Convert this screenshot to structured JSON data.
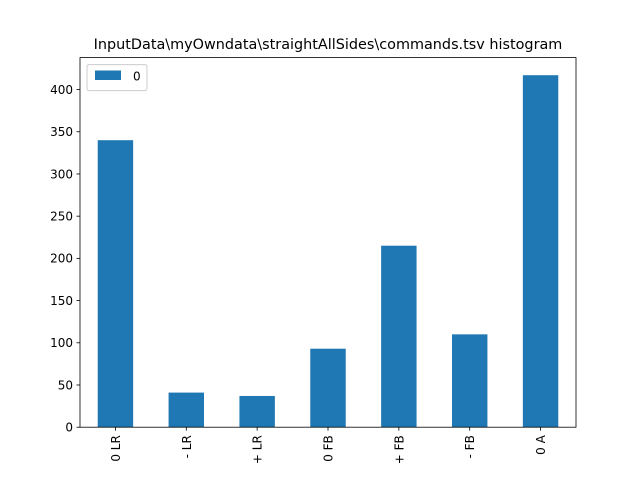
{
  "chart_data": {
    "type": "bar",
    "title": "InputData\\myOwndata\\straightAllSides\\commands.tsv histogram",
    "xlabel": "",
    "ylabel": "",
    "categories": [
      "0 LR",
      "- LR",
      "+ LR",
      "0 FB",
      "+ FB",
      "- FB",
      "0 A"
    ],
    "series": [
      {
        "name": "0",
        "values": [
          340,
          41,
          37,
          93,
          215,
          110,
          417
        ],
        "color": "#1f77b4"
      }
    ],
    "ylim": [
      0,
      437.85
    ],
    "yticks": [
      0,
      50,
      100,
      150,
      200,
      250,
      300,
      350,
      400
    ],
    "grid": false,
    "legend": "top-left"
  }
}
